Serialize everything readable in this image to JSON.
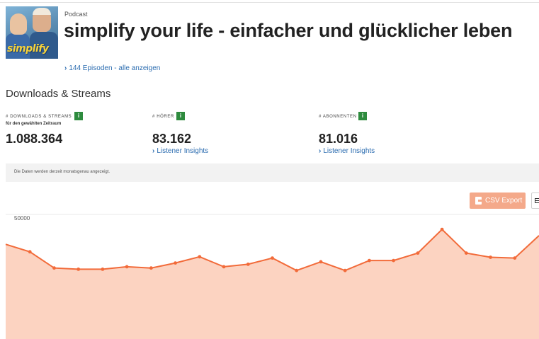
{
  "podcast": {
    "kicker": "Podcast",
    "title": "simplify your life - einfacher und glücklicher leben",
    "cover_brand": "simplify",
    "episodes_link": "144 Episoden - alle anzeigen"
  },
  "section_title": "Downloads & Streams",
  "metrics": [
    {
      "label": "# Downloads & Streams",
      "sublabel": "für den gewählten Zeitraum",
      "value": "1.088.364",
      "info": "i"
    },
    {
      "label": "# Hörer",
      "value": "83.162",
      "link": "Listener Insights",
      "info": "i"
    },
    {
      "label": "# Abonnenten",
      "value": "81.016",
      "link": "Listener Insights",
      "info": "i"
    }
  ],
  "notice": "Die Daten werden derzeit monatsgenau angezeigt.",
  "export": {
    "csv_label": "CSV Export",
    "table_icon": "table-icon"
  },
  "colors": {
    "accent": "#f26b3a",
    "fill": "#fcd3c1",
    "link": "#2b6cb0",
    "info": "#2e8b3e",
    "csv": "#f4a98a"
  },
  "chart_data": {
    "type": "area",
    "y_tick": "50000",
    "ylim": [
      0,
      50000
    ],
    "grid": false,
    "values": [
      38000,
      35000,
      28500,
      28000,
      28000,
      29000,
      28500,
      30500,
      33000,
      29000,
      30000,
      32500,
      27500,
      31000,
      27500,
      31500,
      31500,
      34500,
      44000,
      34500,
      32800,
      32500,
      41500
    ]
  }
}
